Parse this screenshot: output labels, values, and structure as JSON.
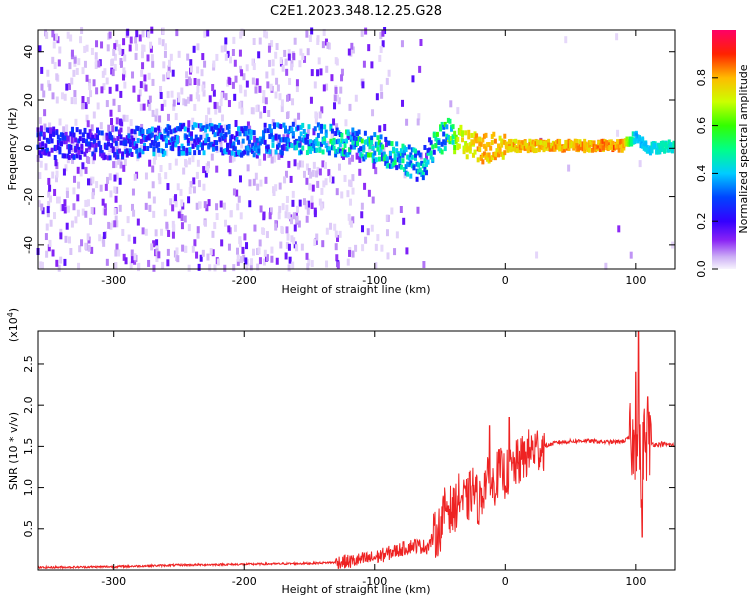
{
  "title": "C2E1.2023.348.12.25.G28",
  "colors": {
    "signal": "#ee2222",
    "axis": "#000000",
    "scatter_light": "#cfb2f2",
    "scatter_dark": "#7a1ff0"
  },
  "chart_data": [
    {
      "type": "heatmap",
      "xlabel": "Height of straight line (km)",
      "ylabel": "Frequency (Hz)",
      "xlim": [
        -358,
        130
      ],
      "ylim": [
        -50,
        49
      ],
      "x_ticks": [
        -300,
        -200,
        -100,
        0,
        100
      ],
      "x_tick_labels": [
        "-300",
        "-200",
        "-100",
        "0",
        "100"
      ],
      "y_ticks": [
        -40,
        -20,
        0,
        20,
        40
      ],
      "y_tick_labels": [
        "-40",
        "-20",
        "0",
        "20",
        "40"
      ],
      "grid": false,
      "colorbar": {
        "label": "Normalized spectral amplitude",
        "range": [
          0,
          1
        ],
        "ticks": [
          0.0,
          0.2,
          0.4,
          0.6,
          0.8
        ],
        "tick_labels": [
          "0.0",
          "0.2",
          "0.4",
          "0.6",
          "0.8"
        ],
        "stops": [
          {
            "v": 0.0,
            "c": "#f7f3fd"
          },
          {
            "v": 0.05,
            "c": "#cdb0f5"
          },
          {
            "v": 0.12,
            "c": "#8a24f5"
          },
          {
            "v": 0.2,
            "c": "#3300ff"
          },
          {
            "v": 0.3,
            "c": "#0044ff"
          },
          {
            "v": 0.4,
            "c": "#00ccff"
          },
          {
            "v": 0.5,
            "c": "#00ff88"
          },
          {
            "v": 0.6,
            "c": "#33ff00"
          },
          {
            "v": 0.7,
            "c": "#ccff00"
          },
          {
            "v": 0.8,
            "c": "#ffbb00"
          },
          {
            "v": 0.9,
            "c": "#ff2200"
          },
          {
            "v": 1.0,
            "c": "#ff0066"
          }
        ]
      },
      "ridge": [
        {
          "x": -358,
          "f": 2,
          "a": 0.25
        },
        {
          "x": -300,
          "f": 2,
          "a": 0.25
        },
        {
          "x": -270,
          "f": 3,
          "a": 0.35
        },
        {
          "x": -240,
          "f": 4,
          "a": 0.35
        },
        {
          "x": -200,
          "f": 3,
          "a": 0.35
        },
        {
          "x": -170,
          "f": 4,
          "a": 0.35
        },
        {
          "x": -140,
          "f": 4,
          "a": 0.45
        },
        {
          "x": -120,
          "f": 2,
          "a": 0.5
        },
        {
          "x": -100,
          "f": 0,
          "a": 0.5
        },
        {
          "x": -80,
          "f": -3,
          "a": 0.45
        },
        {
          "x": -65,
          "f": -8,
          "a": 0.4
        },
        {
          "x": -55,
          "f": 0,
          "a": 0.45
        },
        {
          "x": -45,
          "f": 6,
          "a": 0.6
        },
        {
          "x": -35,
          "f": 3,
          "a": 0.75
        },
        {
          "x": -20,
          "f": 0,
          "a": 0.85
        },
        {
          "x": 0,
          "f": 1,
          "a": 0.85
        },
        {
          "x": 40,
          "f": 1,
          "a": 0.85
        },
        {
          "x": 90,
          "f": 1,
          "a": 0.9
        },
        {
          "x": 100,
          "f": 5,
          "a": 0.4
        },
        {
          "x": 110,
          "f": 0,
          "a": 0.45
        },
        {
          "x": 130,
          "f": 1,
          "a": 0.5
        }
      ]
    },
    {
      "type": "line",
      "xlabel": "Height of straight line (km)",
      "ylabel": "SNR (10 * v/v)",
      "y_scale_note": "(x10",
      "y_scale_exp": "4",
      "y_scale_close": ")",
      "xlim": [
        -358,
        130
      ],
      "ylim": [
        0,
        29000
      ],
      "x_ticks": [
        -300,
        -200,
        -100,
        0,
        100
      ],
      "x_tick_labels": [
        "-300",
        "-200",
        "-100",
        "0",
        "100"
      ],
      "y_ticks": [
        5000,
        10000,
        15000,
        20000,
        25000
      ],
      "y_tick_labels": [
        "0.5",
        "1.0",
        "1.5",
        "2.0",
        "2.5"
      ],
      "grid": false,
      "series": [
        {
          "x": [
            -358,
            -300,
            -250,
            -200,
            -150,
            -120,
            -100,
            -90,
            -80,
            -70,
            -60,
            -50,
            -45,
            -40,
            -35,
            -30,
            -25,
            -20,
            -15,
            -10,
            -5,
            0,
            10,
            20,
            30,
            40,
            60,
            80,
            90,
            95,
            98,
            100,
            102,
            104,
            106,
            108,
            110,
            115,
            120,
            130
          ],
          "y": [
            300,
            400,
            600,
            700,
            800,
            1000,
            1500,
            2000,
            2500,
            3000,
            2800,
            5000,
            8000,
            7000,
            9000,
            8000,
            10000,
            8000,
            11000,
            10000,
            12000,
            11500,
            13000,
            14500,
            15000,
            15500,
            15700,
            15500,
            15600,
            16000,
            15000,
            15000,
            20000,
            10000,
            16000,
            15000,
            15500,
            15200,
            15300,
            15100
          ],
          "peaks": [
            {
              "x": -12,
              "y": 17500
            },
            {
              "x": 3,
              "y": 18500
            },
            {
              "x": 100,
              "y": 24000
            },
            {
              "x": 102,
              "y": 29000
            },
            {
              "x": 105,
              "y": 4000
            },
            {
              "x": 109,
              "y": 21000
            }
          ]
        }
      ]
    }
  ]
}
